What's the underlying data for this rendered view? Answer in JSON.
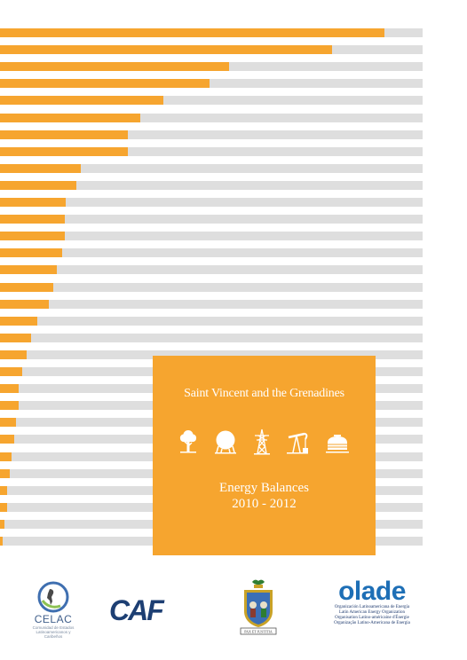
{
  "bars": {
    "fill_fractions": [
      0.91,
      0.785,
      0.542,
      0.496,
      0.387,
      0.331,
      0.303,
      0.303,
      0.192,
      0.181,
      0.155,
      0.153,
      0.153,
      0.146,
      0.134,
      0.126,
      0.116,
      0.088,
      0.074,
      0.063,
      0.052,
      0.044,
      0.044,
      0.037,
      0.033,
      0.027,
      0.023,
      0.017,
      0.017,
      0.011,
      0.006
    ],
    "colors": {
      "fill": "#f6a52f",
      "track": "#dedede"
    }
  },
  "cover": {
    "country": "Saint Vincent and the Grenadines",
    "title_line1": "Energy Balances",
    "title_line2": "2010 - 2012",
    "icons": [
      "tree-icon",
      "storage-tank-icon",
      "power-tower-icon",
      "oil-pump-icon",
      "fuel-tank-icon"
    ]
  },
  "logos": {
    "celac": {
      "name": "CELAC",
      "subtitle_line1": "Comunidad de Estados",
      "subtitle_line2": "Latinoamericanos y Caribeños"
    },
    "caf": {
      "name": "CAF"
    },
    "coat_of_arms": {
      "motto": "PAX ET JUSTITIA"
    },
    "olade": {
      "name": "olade",
      "line1": "Organización Latinoamericana de Energía",
      "line2": "Latin American Energy Organization",
      "line3": "Organisation Latino-américaine d'Énergie",
      "line4": "Organização Latino-Americana de Energia"
    }
  }
}
